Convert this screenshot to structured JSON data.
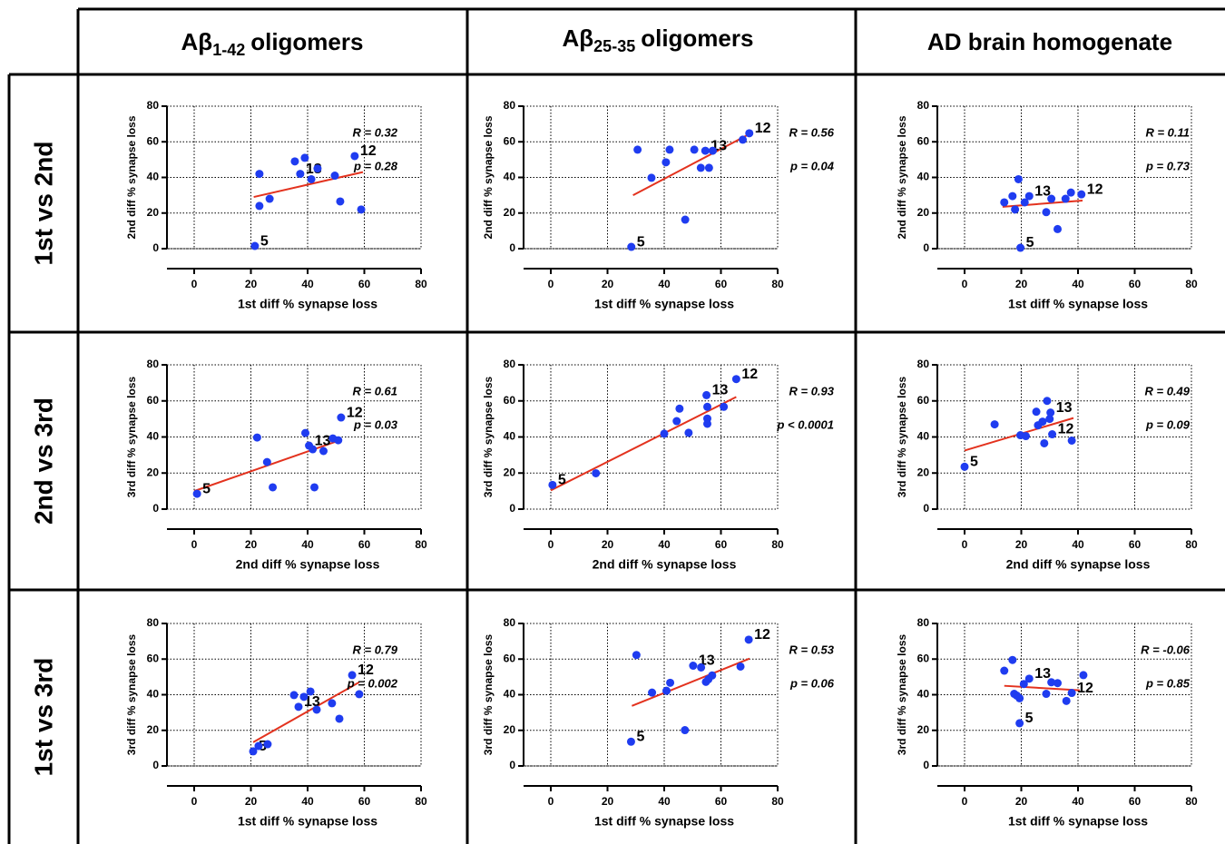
{
  "columns": [
    {
      "prefix": "Aβ",
      "sub": "1-42",
      "suffix": "oligomers"
    },
    {
      "prefix": "Aβ",
      "sub": "25-35",
      "suffix": "oligomers"
    },
    {
      "prefix": "AD brain homogenate"
    }
  ],
  "rows": [
    "1st vs 2nd",
    "2nd vs 3rd",
    "1st vs 3rd"
  ],
  "chart_data": [
    {
      "type": "scatter",
      "xlabel": "1st diff % synapse loss",
      "ylabel": "2nd diff % synapse loss",
      "x": [
        21.4,
        23,
        23,
        26.6,
        35.5,
        37.4,
        39,
        41.3,
        43.5,
        49.6,
        51.5,
        56.6,
        58.9
      ],
      "values": [
        1.5,
        42,
        24,
        28,
        49,
        42,
        51,
        39,
        45,
        41,
        26.5,
        52,
        22
      ],
      "point_labels": [
        "5",
        null,
        null,
        null,
        null,
        "13",
        null,
        null,
        null,
        null,
        null,
        "12",
        null
      ],
      "fit": {
        "x": [
          21,
          59.5
        ],
        "y": [
          29,
          43
        ]
      },
      "annotations": [
        "R = 0.32",
        "p = 0.28"
      ],
      "xlim": [
        0,
        80
      ],
      "ylim": [
        0,
        80
      ],
      "xticks": [
        0,
        20,
        40,
        60,
        80
      ],
      "yticks": [
        0,
        20,
        40,
        60,
        80
      ],
      "grid": true,
      "color": "#1f3cf0",
      "fit_color": "#e3321e"
    },
    {
      "type": "scatter",
      "xlabel": "1st diff % synapse loss",
      "ylabel": "2nd diff % synapse loss",
      "x": [
        28.4,
        30.6,
        35.5,
        40.6,
        41.9,
        47.4,
        50.6,
        52.9,
        54.5,
        55.8,
        57.1,
        67.7,
        70
      ],
      "values": [
        1,
        55.6,
        39.8,
        48.5,
        55.6,
        16.3,
        55.6,
        45.4,
        55,
        45.4,
        55,
        61.2,
        64.8
      ],
      "point_labels": [
        "5",
        null,
        null,
        null,
        null,
        null,
        null,
        null,
        "13",
        null,
        null,
        null,
        "12"
      ],
      "fit": {
        "x": [
          29,
          69.4
        ],
        "y": [
          30,
          63.8
        ]
      },
      "annotations": [
        "R = 0.56",
        "p = 0.04"
      ],
      "xlim": [
        0,
        80
      ],
      "ylim": [
        0,
        80
      ],
      "xticks": [
        0,
        20,
        40,
        60,
        80
      ],
      "yticks": [
        0,
        20,
        40,
        60,
        80
      ],
      "grid": true,
      "color": "#1f3cf0",
      "fit_color": "#e3321e"
    },
    {
      "type": "scatter",
      "xlabel": "1st diff % synapse loss",
      "ylabel": "2nd diff % synapse loss",
      "x": [
        14,
        16.9,
        17.8,
        19,
        19.7,
        21.2,
        22.8,
        28.8,
        30.6,
        32.8,
        35.6,
        37.5,
        41.2
      ],
      "values": [
        26,
        29.5,
        22,
        39,
        0.5,
        26,
        29.5,
        20.5,
        28,
        11,
        28,
        31.5,
        30.5
      ],
      "point_labels": [
        null,
        null,
        null,
        null,
        "5",
        null,
        "13",
        null,
        null,
        null,
        null,
        null,
        "12"
      ],
      "fit": {
        "x": [
          13.4,
          41.6
        ],
        "y": [
          23.5,
          27
        ]
      },
      "annotations": [
        "R = 0.11",
        "p = 0.73"
      ],
      "xlim": [
        0,
        80
      ],
      "ylim": [
        0,
        80
      ],
      "xticks": [
        0,
        20,
        40,
        60,
        80
      ],
      "yticks": [
        0,
        20,
        40,
        60,
        80
      ],
      "grid": true,
      "color": "#1f3cf0",
      "fit_color": "#e3321e"
    },
    {
      "type": "scatter",
      "xlabel": "2nd diff % synapse loss",
      "ylabel": "3rd diff % synapse loss",
      "x": [
        1,
        22.2,
        25.7,
        27.7,
        39.2,
        40.5,
        41.8,
        42.4,
        45.6,
        48.9,
        50.8,
        51.8
      ],
      "values": [
        8.5,
        39.7,
        26.1,
        12.1,
        42.2,
        35.2,
        33.2,
        12.1,
        32.2,
        39.2,
        38.2,
        50.8
      ],
      "point_labels": [
        "5",
        null,
        null,
        null,
        null,
        "13",
        null,
        null,
        null,
        null,
        null,
        "12"
      ],
      "fit": {
        "x": [
          0,
          51.4
        ],
        "y": [
          10,
          38.2
        ]
      },
      "annotations": [
        "R = 0.61",
        "p = 0.03"
      ],
      "xlim": [
        0,
        80
      ],
      "ylim": [
        0,
        80
      ],
      "xticks": [
        0,
        20,
        40,
        60,
        80
      ],
      "yticks": [
        0,
        20,
        40,
        60,
        80
      ],
      "grid": true,
      "color": "#1f3cf0",
      "fit_color": "#e3321e"
    },
    {
      "type": "scatter",
      "xlabel": "2nd diff % synapse loss",
      "ylabel": "3rd diff % synapse loss",
      "x": [
        0.6,
        15.9,
        40,
        44.4,
        45.4,
        48.6,
        54.9,
        55.2,
        55.2,
        55.2,
        61,
        65.4
      ],
      "values": [
        13.4,
        19.9,
        41.8,
        48.8,
        55.7,
        42.3,
        63.2,
        56.7,
        50.2,
        47.3,
        56.7,
        72.1
      ],
      "point_labels": [
        "5",
        null,
        null,
        null,
        null,
        null,
        "13",
        null,
        null,
        null,
        null,
        "12"
      ],
      "fit": {
        "x": [
          0,
          65.4
        ],
        "y": [
          10.4,
          62.2
        ]
      },
      "annotations": [
        "R = 0.93",
        "p < 0.0001"
      ],
      "xlim": [
        0,
        80
      ],
      "ylim": [
        0,
        80
      ],
      "xticks": [
        0,
        20,
        40,
        60,
        80
      ],
      "yticks": [
        0,
        20,
        40,
        60,
        80
      ],
      "grid": true,
      "color": "#1f3cf0",
      "fit_color": "#e3321e"
    },
    {
      "type": "scatter",
      "xlabel": "2nd diff % synapse loss",
      "ylabel": "3rd diff % synapse loss",
      "x": [
        0,
        10.6,
        19.7,
        21.6,
        25.3,
        25.9,
        27.5,
        28.1,
        29.1,
        30,
        30.3,
        30.9,
        37.8
      ],
      "values": [
        23.5,
        47,
        41,
        40.5,
        54,
        46.5,
        48.5,
        36.5,
        60,
        50,
        53.5,
        41.5,
        38
      ],
      "point_labels": [
        "5",
        null,
        null,
        null,
        null,
        null,
        null,
        null,
        null,
        null,
        "13",
        "12",
        null
      ],
      "fit": {
        "x": [
          0,
          38.4
        ],
        "y": [
          32.5,
          50.5
        ]
      },
      "annotations": [
        "R = 0.49",
        "p = 0.09"
      ],
      "xlim": [
        0,
        80
      ],
      "ylim": [
        0,
        80
      ],
      "xticks": [
        0,
        20,
        40,
        60,
        80
      ],
      "yticks": [
        0,
        20,
        40,
        60,
        80
      ],
      "grid": true,
      "color": "#1f3cf0",
      "fit_color": "#e3321e"
    },
    {
      "type": "scatter",
      "xlabel": "1st diff % synapse loss",
      "ylabel": "3rd diff % synapse loss",
      "x": [
        20.8,
        22.7,
        25.9,
        35.2,
        36.8,
        38.7,
        41,
        43.2,
        48.6,
        51.2,
        55.7,
        58.2
      ],
      "values": [
        8.2,
        11.2,
        12.2,
        39.8,
        33.2,
        38.8,
        41.8,
        31.6,
        35.2,
        26.5,
        51,
        40.3
      ],
      "point_labels": [
        "5",
        null,
        null,
        null,
        "13",
        null,
        null,
        null,
        null,
        null,
        "12",
        null
      ],
      "fit": {
        "x": [
          20.8,
          58.2
        ],
        "y": [
          13.3,
          47
        ]
      },
      "annotations": [
        "R = 0.79",
        "p = 0.002"
      ],
      "xlim": [
        0,
        80
      ],
      "ylim": [
        0,
        80
      ],
      "xticks": [
        0,
        20,
        40,
        60,
        80
      ],
      "yticks": [
        0,
        20,
        40,
        60,
        80
      ],
      "grid": true,
      "color": "#1f3cf0",
      "fit_color": "#e3321e"
    },
    {
      "type": "scatter",
      "xlabel": "1st diff % synapse loss",
      "ylabel": "3rd diff % synapse loss",
      "x": [
        28.3,
        30.2,
        35.7,
        40.8,
        42.1,
        47.3,
        50.2,
        53,
        54.7,
        55.6,
        56.9,
        66.9,
        69.8
      ],
      "values": [
        13.6,
        62.3,
        41.2,
        42.2,
        46.7,
        20.1,
        56.3,
        55.3,
        47.2,
        48.7,
        50.8,
        55.8,
        70.9
      ],
      "point_labels": [
        "5",
        null,
        null,
        null,
        null,
        null,
        "13",
        null,
        null,
        null,
        null,
        null,
        "12"
      ],
      "fit": {
        "x": [
          28.6,
          70.1
        ],
        "y": [
          33.7,
          60.3
        ]
      },
      "annotations": [
        "R = 0.53",
        "p = 0.06"
      ],
      "xlim": [
        0,
        80
      ],
      "ylim": [
        0,
        80
      ],
      "xticks": [
        0,
        20,
        40,
        60,
        80
      ],
      "yticks": [
        0,
        20,
        40,
        60,
        80
      ],
      "grid": true,
      "color": "#1f3cf0",
      "fit_color": "#e3321e"
    },
    {
      "type": "scatter",
      "xlabel": "1st diff % synapse loss",
      "ylabel": "3rd diff % synapse loss",
      "x": [
        14,
        16.9,
        17.5,
        18.4,
        19.4,
        19.4,
        20.9,
        22.8,
        28.8,
        30.6,
        32.8,
        35.9,
        37.8,
        41.9
      ],
      "values": [
        53.5,
        59.5,
        40.5,
        39.5,
        24,
        38,
        46,
        49,
        40.5,
        47,
        46.5,
        36.5,
        41,
        51
      ],
      "point_labels": [
        null,
        null,
        null,
        null,
        "5",
        null,
        null,
        "13",
        null,
        null,
        null,
        null,
        "12",
        null
      ],
      "fit": {
        "x": [
          14,
          40.6
        ],
        "y": [
          45,
          42.5
        ]
      },
      "annotations": [
        "R = -0.06",
        "p = 0.85"
      ],
      "xlim": [
        0,
        80
      ],
      "ylim": [
        0,
        80
      ],
      "xticks": [
        0,
        20,
        40,
        60,
        80
      ],
      "yticks": [
        0,
        20,
        40,
        60,
        80
      ],
      "grid": true,
      "color": "#1f3cf0",
      "fit_color": "#e3321e"
    }
  ]
}
